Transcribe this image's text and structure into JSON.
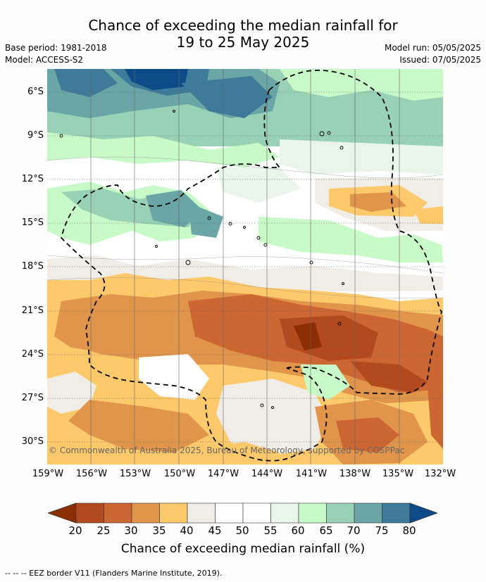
{
  "title": {
    "line1": "Chance of exceeding the median rainfall for",
    "line2": "19 to 25 May 2025"
  },
  "meta": {
    "base_period": "Base period: 1981-2018",
    "model": "Model: ACCESS-S2",
    "model_run": "Model run: 05/05/2025",
    "issued": "Issued: 07/05/2025"
  },
  "map": {
    "lat_labels": [
      "6°S",
      "9°S",
      "12°S",
      "15°S",
      "18°S",
      "21°S",
      "24°S",
      "27°S",
      "30°S"
    ],
    "lon_labels": [
      "159°W",
      "156°W",
      "153°W",
      "150°W",
      "147°W",
      "144°W",
      "141°W",
      "138°W",
      "135°W",
      "132°W"
    ],
    "copyright": "© Commonwealth of Australia 2025, Bureau of Meteorology, supported by COSPPac"
  },
  "colorbar": {
    "title": "Chance of exceeding median rainfall (%)",
    "ticks": [
      "20",
      "25",
      "30",
      "35",
      "40",
      "45",
      "50",
      "55",
      "60",
      "65",
      "70",
      "75",
      "80"
    ],
    "colors": [
      "#8c2d04",
      "#b34a1f",
      "#cc6633",
      "#e0954a",
      "#fdc96b",
      "#f0ece6",
      "#ffffff",
      "#ffffff",
      "#e8f5e8",
      "#c8fac8",
      "#99d1b6",
      "#6aa6a6",
      "#3e7a99",
      "#0d4b88"
    ]
  },
  "footnote": "--  --  -- EEZ border V11 (Flanders Marine Institute, 2019)."
}
